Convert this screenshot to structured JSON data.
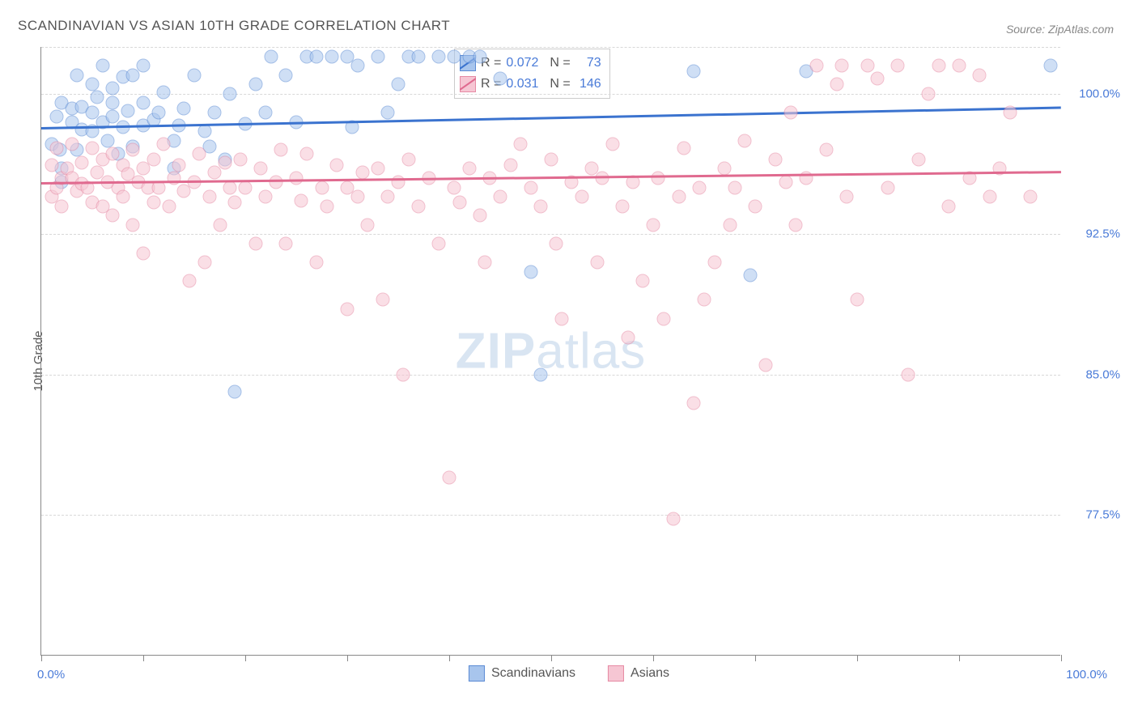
{
  "title": "SCANDINAVIAN VS ASIAN 10TH GRADE CORRELATION CHART",
  "source_label": "Source: ZipAtlas.com",
  "y_axis_label": "10th Grade",
  "watermark": {
    "bold": "ZIP",
    "rest": "atlas"
  },
  "chart": {
    "type": "scatter",
    "xlim": [
      0,
      100
    ],
    "ylim": [
      70,
      102.5
    ],
    "x_ticks": [
      0,
      10,
      20,
      30,
      40,
      50,
      60,
      70,
      80,
      90,
      100
    ],
    "x_tick_labels": {
      "0": "0.0%",
      "100": "100.0%"
    },
    "y_gridlines": [
      77.5,
      85.0,
      92.5,
      100.0,
      102.5
    ],
    "y_tick_labels": {
      "77.5": "77.5%",
      "85.0": "85.0%",
      "92.5": "92.5%",
      "100.0": "100.0%"
    },
    "background_color": "#ffffff",
    "grid_color": "#d8d8d8",
    "axis_color": "#888888",
    "marker_radius": 8.5,
    "marker_opacity": 0.55,
    "series": [
      {
        "name": "Scandinavians",
        "fill_color": "#a8c5ed",
        "stroke_color": "#5b8bd4",
        "trend_color": "#3b73cf",
        "r": "0.072",
        "n": "73",
        "trend": {
          "y_at_x0": 98.2,
          "y_at_x100": 99.3
        },
        "points": [
          [
            1,
            97.3
          ],
          [
            1.5,
            98.8
          ],
          [
            1.8,
            97.0
          ],
          [
            2,
            96.0
          ],
          [
            2,
            99.5
          ],
          [
            2,
            95.3
          ],
          [
            3,
            98.5
          ],
          [
            3,
            99.2
          ],
          [
            3.5,
            97.0
          ],
          [
            3.5,
            101.0
          ],
          [
            4,
            98.1
          ],
          [
            4,
            99.3
          ],
          [
            5,
            98.0
          ],
          [
            5,
            100.5
          ],
          [
            5,
            99.0
          ],
          [
            5.5,
            99.8
          ],
          [
            6,
            98.5
          ],
          [
            6,
            101.5
          ],
          [
            6.5,
            97.5
          ],
          [
            7,
            98.8
          ],
          [
            7,
            99.5
          ],
          [
            7,
            100.3
          ],
          [
            7.5,
            96.8
          ],
          [
            8,
            100.9
          ],
          [
            8,
            98.2
          ],
          [
            8.5,
            99.1
          ],
          [
            9,
            101.0
          ],
          [
            9,
            97.2
          ],
          [
            10,
            101.5
          ],
          [
            10,
            98.3
          ],
          [
            10,
            99.5
          ],
          [
            11,
            98.6
          ],
          [
            11.5,
            99.0
          ],
          [
            12,
            100.1
          ],
          [
            13,
            96.0
          ],
          [
            13,
            97.5
          ],
          [
            13.5,
            98.3
          ],
          [
            14,
            99.2
          ],
          [
            15,
            101.0
          ],
          [
            16,
            98.0
          ],
          [
            16.5,
            97.2
          ],
          [
            17,
            99.0
          ],
          [
            18,
            96.5
          ],
          [
            18.5,
            100.0
          ],
          [
            19,
            84.1
          ],
          [
            20,
            98.4
          ],
          [
            21,
            100.5
          ],
          [
            22,
            99.0
          ],
          [
            22.5,
            102.0
          ],
          [
            24,
            101.0
          ],
          [
            25,
            98.5
          ],
          [
            26,
            102.0
          ],
          [
            27,
            102.0
          ],
          [
            28.5,
            102.0
          ],
          [
            30,
            102.0
          ],
          [
            30.5,
            98.2
          ],
          [
            31,
            101.5
          ],
          [
            33,
            102.0
          ],
          [
            34,
            99.0
          ],
          [
            35,
            100.5
          ],
          [
            36,
            102.0
          ],
          [
            37,
            102.0
          ],
          [
            39,
            102.0
          ],
          [
            40.5,
            102.0
          ],
          [
            42,
            102.0
          ],
          [
            43,
            102.0
          ],
          [
            45,
            100.8
          ],
          [
            48,
            90.5
          ],
          [
            49,
            85.0
          ],
          [
            64,
            101.2
          ],
          [
            69.5,
            90.3
          ],
          [
            75,
            101.2
          ],
          [
            99,
            101.5
          ]
        ]
      },
      {
        "name": "Asians",
        "fill_color": "#f6c6d3",
        "stroke_color": "#e68aa4",
        "trend_color": "#e06a8f",
        "r": "0.031",
        "n": "146",
        "trend": {
          "y_at_x0": 95.3,
          "y_at_x100": 95.9
        },
        "points": [
          [
            1,
            94.5
          ],
          [
            1,
            96.2
          ],
          [
            1.5,
            95.0
          ],
          [
            1.5,
            97.1
          ],
          [
            2,
            95.5
          ],
          [
            2,
            94.0
          ],
          [
            2.5,
            96.0
          ],
          [
            3,
            95.5
          ],
          [
            3,
            97.3
          ],
          [
            3.5,
            94.8
          ],
          [
            4,
            95.2
          ],
          [
            4,
            96.3
          ],
          [
            4.5,
            95.0
          ],
          [
            5,
            97.1
          ],
          [
            5,
            94.2
          ],
          [
            5.5,
            95.8
          ],
          [
            6,
            96.5
          ],
          [
            6,
            94.0
          ],
          [
            6.5,
            95.3
          ],
          [
            7,
            96.8
          ],
          [
            7,
            93.5
          ],
          [
            7.5,
            95.0
          ],
          [
            8,
            96.2
          ],
          [
            8,
            94.5
          ],
          [
            8.5,
            95.7
          ],
          [
            9,
            97.0
          ],
          [
            9,
            93.0
          ],
          [
            9.5,
            95.3
          ],
          [
            10,
            91.5
          ],
          [
            10,
            96.0
          ],
          [
            10.5,
            95.0
          ],
          [
            11,
            94.2
          ],
          [
            11,
            96.5
          ],
          [
            11.5,
            95.0
          ],
          [
            12,
            97.3
          ],
          [
            12.5,
            94.0
          ],
          [
            13,
            95.5
          ],
          [
            13.5,
            96.2
          ],
          [
            14,
            94.8
          ],
          [
            14.5,
            90.0
          ],
          [
            15,
            95.3
          ],
          [
            15.5,
            96.8
          ],
          [
            16,
            91.0
          ],
          [
            16.5,
            94.5
          ],
          [
            17,
            95.8
          ],
          [
            17.5,
            93.0
          ],
          [
            18,
            96.3
          ],
          [
            18.5,
            95.0
          ],
          [
            19,
            94.2
          ],
          [
            19.5,
            96.5
          ],
          [
            20,
            95.0
          ],
          [
            21,
            92.0
          ],
          [
            21.5,
            96.0
          ],
          [
            22,
            94.5
          ],
          [
            23,
            95.3
          ],
          [
            23.5,
            97.0
          ],
          [
            24,
            92.0
          ],
          [
            25,
            95.5
          ],
          [
            25.5,
            94.3
          ],
          [
            26,
            96.8
          ],
          [
            27,
            91.0
          ],
          [
            27.5,
            95.0
          ],
          [
            28,
            94.0
          ],
          [
            29,
            96.2
          ],
          [
            30,
            95.0
          ],
          [
            30,
            88.5
          ],
          [
            31,
            94.5
          ],
          [
            31.5,
            95.8
          ],
          [
            32,
            93.0
          ],
          [
            33,
            96.0
          ],
          [
            33.5,
            89.0
          ],
          [
            34,
            94.5
          ],
          [
            35,
            95.3
          ],
          [
            35.5,
            85.0
          ],
          [
            36,
            96.5
          ],
          [
            37,
            94.0
          ],
          [
            38,
            95.5
          ],
          [
            39,
            92.0
          ],
          [
            40,
            79.5
          ],
          [
            40.5,
            95.0
          ],
          [
            41,
            94.2
          ],
          [
            42,
            96.0
          ],
          [
            43,
            93.5
          ],
          [
            43.5,
            91.0
          ],
          [
            44,
            95.5
          ],
          [
            45,
            94.5
          ],
          [
            46,
            96.2
          ],
          [
            47,
            97.3
          ],
          [
            48,
            95.0
          ],
          [
            49,
            94.0
          ],
          [
            50,
            96.5
          ],
          [
            50.5,
            92.0
          ],
          [
            51,
            88.0
          ],
          [
            52,
            95.3
          ],
          [
            53,
            94.5
          ],
          [
            54,
            96.0
          ],
          [
            54.5,
            91.0
          ],
          [
            55,
            95.5
          ],
          [
            56,
            97.3
          ],
          [
            57,
            94.0
          ],
          [
            57.5,
            87.0
          ],
          [
            58,
            95.3
          ],
          [
            59,
            90.0
          ],
          [
            60,
            93.0
          ],
          [
            60.5,
            95.5
          ],
          [
            61,
            88.0
          ],
          [
            62,
            77.3
          ],
          [
            62.5,
            94.5
          ],
          [
            63,
            97.1
          ],
          [
            64,
            83.5
          ],
          [
            64.5,
            95.0
          ],
          [
            65,
            89.0
          ],
          [
            66,
            91.0
          ],
          [
            67,
            96.0
          ],
          [
            67.5,
            93.0
          ],
          [
            68,
            95.0
          ],
          [
            69,
            97.5
          ],
          [
            70,
            94.0
          ],
          [
            71,
            85.5
          ],
          [
            72,
            96.5
          ],
          [
            73,
            95.3
          ],
          [
            73.5,
            99.0
          ],
          [
            74,
            93.0
          ],
          [
            75,
            95.5
          ],
          [
            76,
            101.5
          ],
          [
            77,
            97.0
          ],
          [
            78,
            100.5
          ],
          [
            78.5,
            101.5
          ],
          [
            79,
            94.5
          ],
          [
            80,
            89.0
          ],
          [
            81,
            101.5
          ],
          [
            82,
            100.8
          ],
          [
            83,
            95.0
          ],
          [
            84,
            101.5
          ],
          [
            85,
            85.0
          ],
          [
            86,
            96.5
          ],
          [
            87,
            100.0
          ],
          [
            88,
            101.5
          ],
          [
            89,
            94.0
          ],
          [
            90,
            101.5
          ],
          [
            91,
            95.5
          ],
          [
            92,
            101.0
          ],
          [
            93,
            94.5
          ],
          [
            94,
            96.0
          ],
          [
            95,
            99.0
          ],
          [
            97,
            94.5
          ]
        ]
      }
    ]
  },
  "stats_box": {
    "rows": [
      {
        "series": 0,
        "r_label": "R =",
        "n_label": "N ="
      },
      {
        "series": 1,
        "r_label": "R =",
        "n_label": "N ="
      }
    ]
  },
  "bottom_legend": [
    {
      "series": 0
    },
    {
      "series": 1
    }
  ]
}
